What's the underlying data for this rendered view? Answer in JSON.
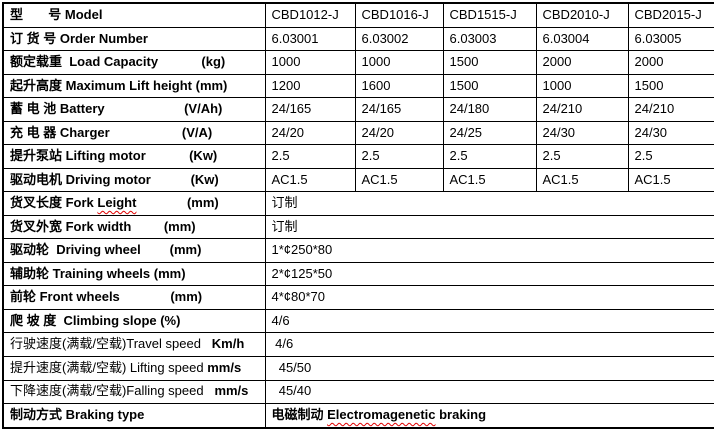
{
  "page": {
    "background_color": "#ffffff",
    "border_color": "#000000",
    "text_color": "#000000",
    "misspelling_underline_color": "#e00000"
  },
  "table": {
    "rows": [
      {
        "id": "model",
        "label": [
          {
            "t": "型       号 Model",
            "b": true
          }
        ],
        "cells": [
          "CBD1012-J",
          "CBD1016-J",
          "CBD1515-J",
          "CBD2010-J",
          "CBD2015-J"
        ]
      },
      {
        "id": "order-number",
        "label": [
          {
            "t": "订 货 号 Order Number",
            "b": true
          }
        ],
        "cells": [
          "6.03001",
          "6.03002",
          "6.03003",
          "6.03004",
          "6.03005"
        ]
      },
      {
        "id": "load-capacity",
        "label": [
          {
            "t": "额定载重  Load Capacity            (kg)",
            "b": true
          }
        ],
        "cells": [
          "1000",
          "1000",
          "1500",
          "2000",
          "2000"
        ]
      },
      {
        "id": "max-lift-height",
        "label": [
          {
            "t": "起升高度 Maximum Lift height (mm)",
            "b": true
          }
        ],
        "cells": [
          "1200",
          "1600",
          "1500",
          "1000",
          "1500"
        ]
      },
      {
        "id": "battery",
        "label": [
          {
            "t": "蓄 电 池 Battery                      (V/Ah)",
            "b": true
          }
        ],
        "cells": [
          "24/165",
          "24/165",
          "24/180",
          "24/210",
          "24/210"
        ]
      },
      {
        "id": "charger",
        "label": [
          {
            "t": "充 电 器 Charger                    (V/A)",
            "b": true
          }
        ],
        "cells": [
          "24/20",
          "24/20",
          "24/25",
          "24/30",
          "24/30"
        ]
      },
      {
        "id": "lifting-motor",
        "label": [
          {
            "t": "提升泵站 Lifting motor            (Kw)",
            "b": true
          }
        ],
        "cells": [
          "2.5",
          "2.5",
          "2.5",
          "2.5",
          "2.5"
        ]
      },
      {
        "id": "driving-motor",
        "label": [
          {
            "t": "驱动电机 Driving motor           (Kw)",
            "b": true
          }
        ],
        "cells": [
          "AC1.5",
          "AC1.5",
          "AC1.5",
          "AC1.5",
          "AC1.5"
        ]
      },
      {
        "id": "fork-length",
        "label": [
          {
            "t": "货叉长度 Fork ",
            "b": true
          },
          {
            "t": "Leight",
            "b": true,
            "wavy": true
          },
          {
            "t": "              (mm)",
            "b": true
          }
        ],
        "cells": [
          "订制"
        ],
        "colspan": 5
      },
      {
        "id": "fork-width",
        "label": [
          {
            "t": "货叉外宽 Fork width         (mm)",
            "b": true
          }
        ],
        "cells": [
          "订制"
        ],
        "colspan": 5
      },
      {
        "id": "driving-wheel",
        "label": [
          {
            "t": "驱动轮  Driving wheel        (mm)",
            "b": true
          }
        ],
        "cells": [
          "1*¢250*80"
        ],
        "colspan": 5
      },
      {
        "id": "training-wheels",
        "label": [
          {
            "t": "辅助轮 Training wheels (mm)",
            "b": true
          }
        ],
        "cells": [
          "2*¢125*50"
        ],
        "colspan": 5
      },
      {
        "id": "front-wheels",
        "label": [
          {
            "t": "前轮 Front wheels              (mm)",
            "b": true
          }
        ],
        "cells": [
          "4*¢80*70"
        ],
        "colspan": 5
      },
      {
        "id": "climbing-slope",
        "label": [
          {
            "t": "爬 坡 度  Climbing slope (%)",
            "b": true
          }
        ],
        "cells": [
          "4/6"
        ],
        "colspan": 5
      },
      {
        "id": "travel-speed",
        "label": [
          {
            "t": "行驶速度(满载/空载)Travel speed   ",
            "b": false
          },
          {
            "t": "Km/h",
            "b": true
          }
        ],
        "cells": [
          " 4/6"
        ],
        "colspan": 5
      },
      {
        "id": "lifting-speed",
        "label": [
          {
            "t": "提升速度(满载/空载) Lifting speed ",
            "b": false
          },
          {
            "t": "mm/s",
            "b": true
          }
        ],
        "cells": [
          "  45/50"
        ],
        "colspan": 5
      },
      {
        "id": "falling-speed",
        "label": [
          {
            "t": "下降速度(满载/空载)Falling speed   ",
            "b": false
          },
          {
            "t": "mm/s",
            "b": true
          }
        ],
        "cells": [
          "  45/40"
        ],
        "colspan": 5
      },
      {
        "id": "braking-type",
        "label": [
          {
            "t": "制动方式 Braking type",
            "b": true
          }
        ],
        "cells": [
          [
            {
              "t": "电磁制动 ",
              "b": true
            },
            {
              "t": "Electromagenetic",
              "b": true,
              "wavy": true
            },
            {
              "t": " braking",
              "b": true
            }
          ]
        ],
        "colspan": 5
      }
    ]
  }
}
